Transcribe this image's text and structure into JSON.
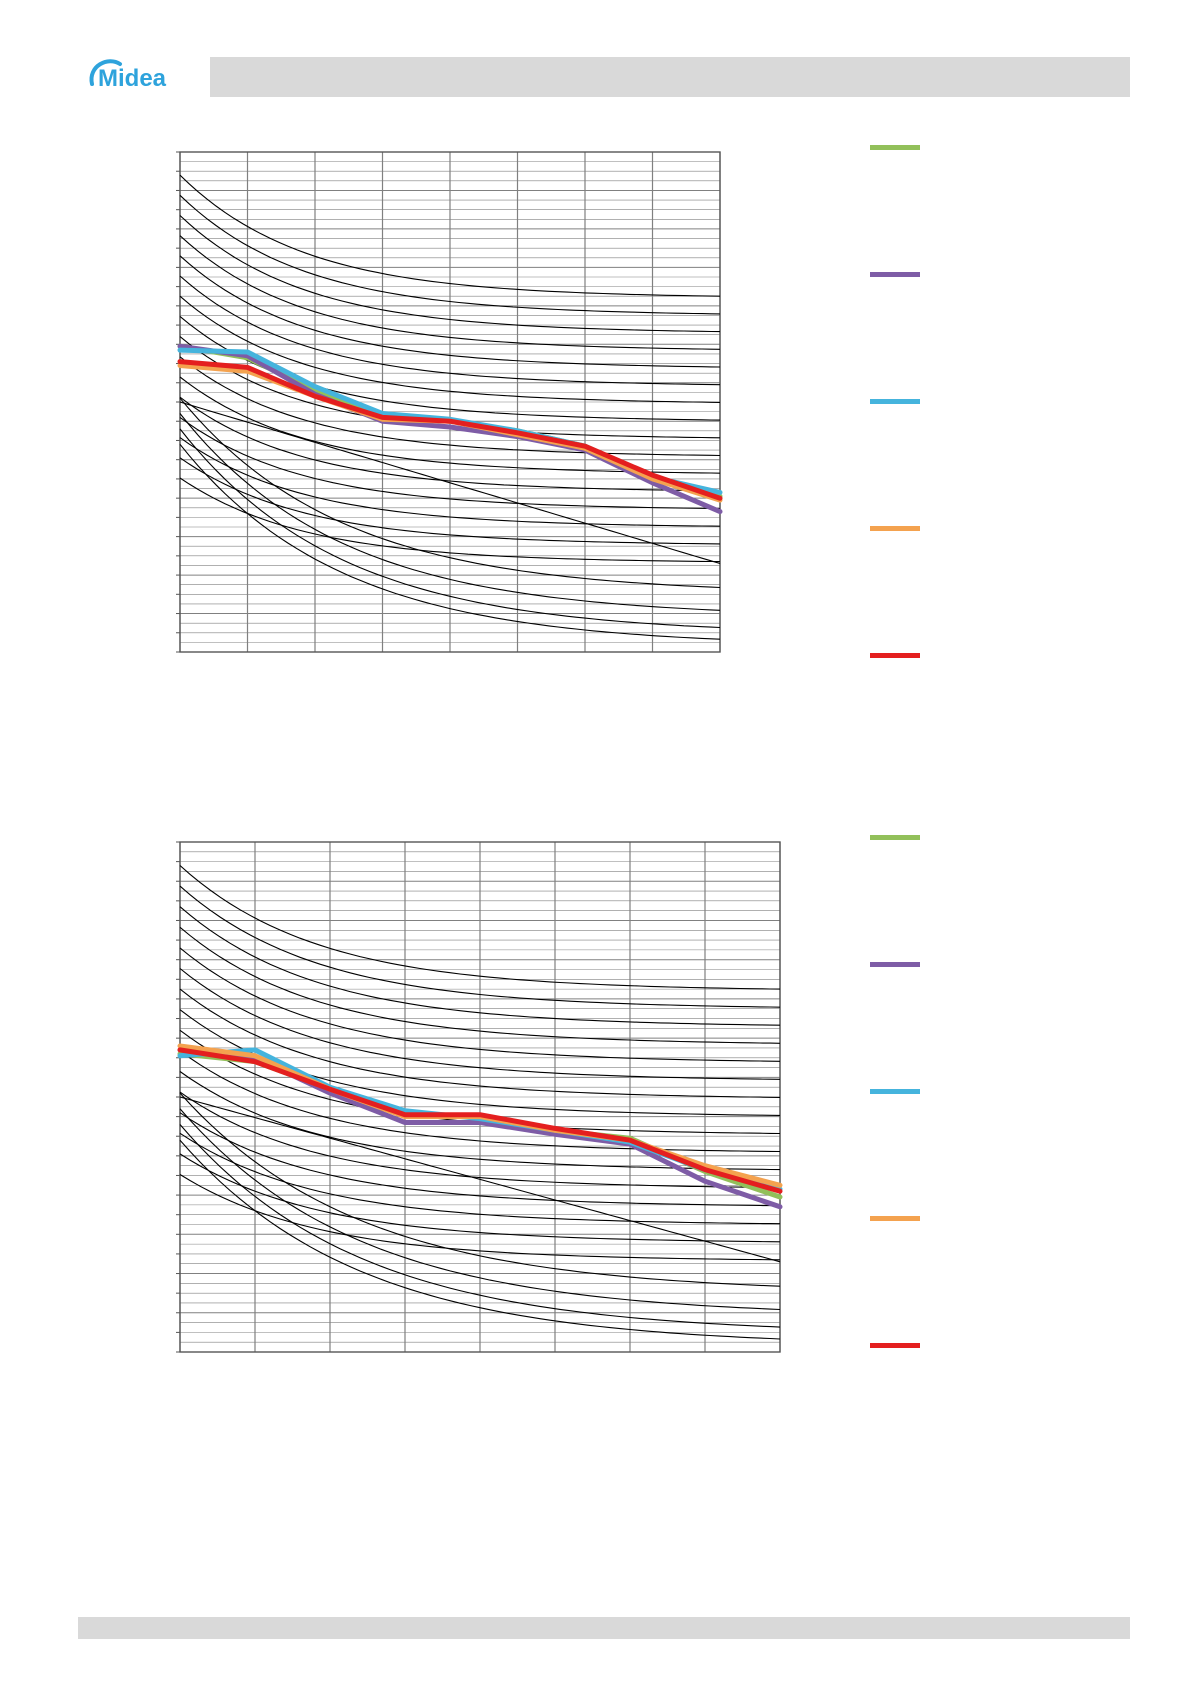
{
  "brand": {
    "logo_text": "Midea",
    "logo_color": "#2ea3dc"
  },
  "colors": {
    "header_bar": "#d9d9d9",
    "grid": "#808080",
    "curve": "#000000",
    "series": [
      "#92c05a",
      "#7e5ca6",
      "#45b4dd",
      "#f4a24f",
      "#e41f1f"
    ]
  },
  "chart_data": [
    {
      "type": "line",
      "title": "",
      "xlabel": "",
      "ylabel": "",
      "xlim": [
        0,
        8
      ],
      "ylim": [
        0,
        26
      ],
      "grid": true,
      "legend_position": "right",
      "x": [
        0,
        1,
        2,
        3,
        4,
        5,
        6,
        7,
        8
      ],
      "series": [
        {
          "name": "",
          "color": "#92c05a",
          "values": [
            15.9,
            15.3,
            13.6,
            12.3,
            12.0,
            11.5,
            10.7,
            9.1,
            8.1
          ]
        },
        {
          "name": "",
          "color": "#7e5ca6",
          "values": [
            15.9,
            15.4,
            13.4,
            12.0,
            11.7,
            11.2,
            10.5,
            8.8,
            7.3
          ]
        },
        {
          "name": "",
          "color": "#45b4dd",
          "values": [
            15.7,
            15.6,
            13.8,
            12.4,
            12.1,
            11.5,
            10.7,
            9.1,
            8.3
          ]
        },
        {
          "name": "",
          "color": "#f4a24f",
          "values": [
            14.9,
            14.6,
            13.3,
            12.1,
            12.0,
            11.3,
            10.6,
            9.0,
            7.9
          ]
        },
        {
          "name": "",
          "color": "#e41f1f",
          "values": [
            15.1,
            14.8,
            13.3,
            12.2,
            12.0,
            11.4,
            10.7,
            9.2,
            8.0
          ]
        }
      ]
    },
    {
      "type": "line",
      "title": "",
      "xlabel": "",
      "ylabel": "",
      "xlim": [
        0,
        8
      ],
      "ylim": [
        0,
        26
      ],
      "grid": true,
      "legend_position": "right",
      "x": [
        0,
        1,
        2,
        3,
        4,
        5,
        6,
        7,
        8
      ],
      "series": [
        {
          "name": "",
          "color": "#92c05a",
          "values": [
            15.2,
            14.8,
            13.4,
            12.1,
            12.0,
            11.3,
            10.9,
            9.2,
            7.9
          ]
        },
        {
          "name": "",
          "color": "#7e5ca6",
          "values": [
            15.4,
            15.0,
            13.2,
            11.7,
            11.7,
            11.1,
            10.6,
            8.7,
            7.4
          ]
        },
        {
          "name": "",
          "color": "#45b4dd",
          "values": [
            15.1,
            15.4,
            13.5,
            12.3,
            11.9,
            11.3,
            10.7,
            9.3,
            8.3
          ]
        },
        {
          "name": "",
          "color": "#f4a24f",
          "values": [
            15.6,
            15.1,
            13.4,
            12.0,
            12.0,
            11.3,
            10.8,
            9.5,
            8.5
          ]
        },
        {
          "name": "",
          "color": "#e41f1f",
          "values": [
            15.4,
            14.8,
            13.4,
            12.1,
            12.1,
            11.4,
            10.8,
            9.3,
            8.2
          ]
        }
      ]
    }
  ]
}
